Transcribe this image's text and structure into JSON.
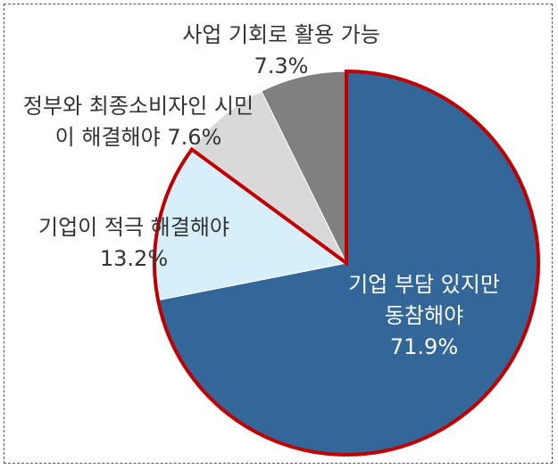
{
  "chart_data": {
    "type": "pie",
    "categories": [
      "기업 부담 있지만 동참해야",
      "기업이 적극 해결해야",
      "정부와 최종소비자인 시민이 해결해야",
      "사업 기회로 활용 가능"
    ],
    "values": [
      71.9,
      13.2,
      7.6,
      7.3
    ],
    "value_labels": [
      "71.9%",
      "13.2%",
      "7.6%",
      "7.3%"
    ],
    "colors": [
      "#336699",
      "#d7effa",
      "#d9d9d9",
      "#808080"
    ]
  }
}
